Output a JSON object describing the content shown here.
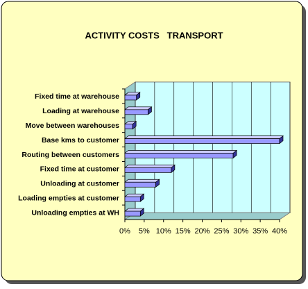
{
  "chart_data": {
    "type": "bar",
    "orientation": "horizontal",
    "title": "ACTIVITY COSTS   TRANSPORT",
    "categories": [
      "Fixed time at warehouse",
      "Loading at warehouse",
      "Move between warehouses",
      "Base kms to customer",
      "Routing between customers",
      "Fixed time at customer",
      "Unloading at customer",
      "Loading empties at customer",
      "Unloading empties at WH"
    ],
    "values": [
      3,
      6,
      2,
      40,
      28,
      12,
      8,
      4,
      4
    ],
    "color": "#9999ff",
    "xlim": [
      0,
      40
    ],
    "xticks": [
      {
        "value": 0,
        "label": "0%"
      },
      {
        "value": 5,
        "label": "5%"
      },
      {
        "value": 10,
        "label": "10%"
      },
      {
        "value": 15,
        "label": "15%"
      },
      {
        "value": 20,
        "label": "20%"
      },
      {
        "value": 25,
        "label": "25%"
      },
      {
        "value": 30,
        "label": "30%"
      },
      {
        "value": 35,
        "label": "35%"
      },
      {
        "value": 40,
        "label": "40%"
      }
    ],
    "grid": true
  }
}
